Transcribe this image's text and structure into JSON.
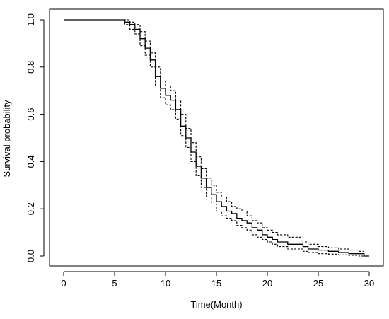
{
  "chart_data": {
    "type": "line",
    "title": "",
    "xlabel": "Time(Month)",
    "ylabel": "Survival probability",
    "xlim": [
      0,
      30
    ],
    "ylim": [
      0,
      1
    ],
    "x_ticks": [
      0,
      5,
      10,
      15,
      20,
      25,
      30
    ],
    "x_tick_labels": [
      "0",
      "5",
      "10",
      "15",
      "20",
      "25",
      "30"
    ],
    "y_ticks": [
      0,
      0.2,
      0.4,
      0.6,
      0.8,
      1.0
    ],
    "y_tick_labels": [
      "0.0",
      "0.2",
      "0.4",
      "0.6",
      "0.8",
      "1.0"
    ],
    "grid": false,
    "legend": "none",
    "series": [
      {
        "role": "estimate",
        "line_style": "solid",
        "x": [
          0,
          5.5,
          6,
          6.5,
          7,
          7.5,
          8,
          8.5,
          9,
          9.5,
          10,
          10.5,
          11,
          11.5,
          12,
          12.5,
          13,
          13.5,
          14,
          14.5,
          15,
          15.5,
          16,
          16.5,
          17,
          17.5,
          18,
          18.5,
          19,
          19.5,
          20,
          20.5,
          21,
          22,
          23,
          23.5,
          24,
          25,
          26,
          27,
          28,
          29,
          29.5,
          30
        ],
        "y": [
          1.0,
          1.0,
          0.99,
          0.98,
          0.96,
          0.92,
          0.88,
          0.83,
          0.76,
          0.71,
          0.68,
          0.66,
          0.62,
          0.55,
          0.5,
          0.44,
          0.38,
          0.33,
          0.29,
          0.26,
          0.23,
          0.21,
          0.19,
          0.18,
          0.16,
          0.15,
          0.14,
          0.12,
          0.11,
          0.09,
          0.08,
          0.07,
          0.06,
          0.05,
          0.05,
          0.04,
          0.03,
          0.025,
          0.02,
          0.015,
          0.01,
          0.01,
          0.0,
          0.0
        ]
      },
      {
        "role": "upper-ci",
        "line_style": "dashed",
        "x": [
          0,
          5.5,
          6,
          6.5,
          7,
          7.5,
          8,
          8.5,
          9,
          9.5,
          10,
          10.5,
          11,
          11.5,
          12,
          12.5,
          13,
          13.5,
          14,
          14.5,
          15,
          15.5,
          16,
          16.5,
          17,
          17.5,
          18,
          18.5,
          19,
          19.5,
          20,
          20.5,
          21,
          22,
          23,
          23.5,
          24,
          25,
          26,
          27,
          28,
          29,
          29.5
        ],
        "y": [
          1.0,
          1.0,
          1.0,
          0.99,
          0.98,
          0.95,
          0.91,
          0.86,
          0.8,
          0.75,
          0.72,
          0.7,
          0.66,
          0.6,
          0.54,
          0.48,
          0.42,
          0.37,
          0.33,
          0.3,
          0.27,
          0.25,
          0.23,
          0.21,
          0.2,
          0.19,
          0.17,
          0.15,
          0.14,
          0.12,
          0.11,
          0.1,
          0.09,
          0.08,
          0.08,
          0.06,
          0.05,
          0.04,
          0.035,
          0.03,
          0.025,
          0.02,
          0.02
        ]
      },
      {
        "role": "lower-ci",
        "line_style": "dashed",
        "x": [
          0,
          5.5,
          6,
          6.5,
          7,
          7.5,
          8,
          8.5,
          9,
          9.5,
          10,
          10.5,
          11,
          11.5,
          12,
          12.5,
          13,
          13.5,
          14,
          14.5,
          15,
          15.5,
          16,
          16.5,
          17,
          17.5,
          18,
          18.5,
          19,
          19.5,
          20,
          20.5,
          21,
          22,
          23,
          23.5,
          24,
          25,
          26,
          27,
          28,
          29,
          29.5
        ],
        "y": [
          1.0,
          1.0,
          0.98,
          0.96,
          0.94,
          0.89,
          0.85,
          0.8,
          0.72,
          0.67,
          0.64,
          0.62,
          0.58,
          0.51,
          0.46,
          0.4,
          0.34,
          0.29,
          0.25,
          0.22,
          0.19,
          0.17,
          0.16,
          0.15,
          0.13,
          0.12,
          0.11,
          0.09,
          0.08,
          0.07,
          0.06,
          0.05,
          0.04,
          0.03,
          0.03,
          0.02,
          0.015,
          0.01,
          0.008,
          0.005,
          0.003,
          0.0,
          0.0
        ]
      }
    ]
  }
}
